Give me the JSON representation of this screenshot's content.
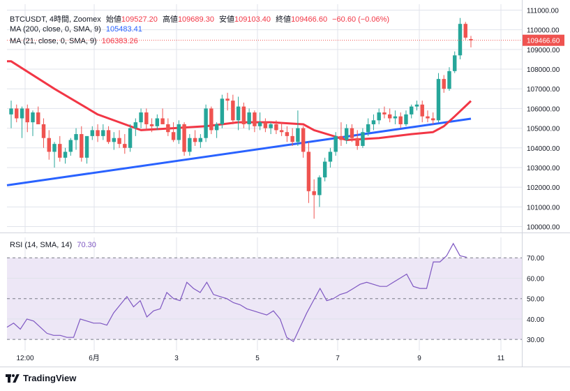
{
  "legend": {
    "symbol": "BTCUSDT, 4時間, Zoomex",
    "open_label": "始値",
    "open_value": "109527.20",
    "high_label": "高値",
    "high_value": "109689.30",
    "low_label": "安値",
    "low_value": "109103.40",
    "close_label": "終値",
    "close_value": "109466.60",
    "change": "−60.60 (−0.06%)",
    "ma200_label": "MA (200, close, 0, SMA, 9)",
    "ma200_value": "105483.41",
    "ma21_label": "MA (21, close, 0, SMA, 9)",
    "ma21_value": "106383.26",
    "rsi_label": "RSI (14, SMA, 14)",
    "rsi_value": "70.30"
  },
  "branding": {
    "logo_text": "TradingView"
  },
  "colors": {
    "up": "#26a69a",
    "down": "#ef5350",
    "ma200": "#2962ff",
    "ma21": "#f23645",
    "rsi_line": "#7e57c2",
    "rsi_band": "#ede7f6",
    "grid": "#e0e3eb",
    "text": "#131722"
  },
  "chart_data": [
    {
      "type": "candlestick",
      "title": "BTCUSDT, 4時間, Zoomex",
      "ylim": [
        99700,
        111300
      ],
      "price_ticks": [
        "111000.00",
        "110000.00",
        "109000.00",
        "108000.00",
        "107000.00",
        "106000.00",
        "105000.00",
        "104000.00",
        "103000.00",
        "102000.00",
        "101000.00",
        "100000.00"
      ],
      "last_price": "109466.60",
      "x_ticks": [
        "12:00",
        "6月",
        "3",
        "5",
        "7",
        "9",
        "11"
      ],
      "candles": [
        {
          "o": 105700,
          "h": 106400,
          "l": 105000,
          "c": 106000
        },
        {
          "o": 106000,
          "h": 106200,
          "l": 105300,
          "c": 105500
        },
        {
          "o": 105500,
          "h": 106100,
          "l": 104500,
          "c": 106000
        },
        {
          "o": 106000,
          "h": 106200,
          "l": 104800,
          "c": 105300
        },
        {
          "o": 105300,
          "h": 105900,
          "l": 104600,
          "c": 105800
        },
        {
          "o": 105800,
          "h": 106100,
          "l": 105200,
          "c": 105200
        },
        {
          "o": 105200,
          "h": 105500,
          "l": 104000,
          "c": 104500
        },
        {
          "o": 104500,
          "h": 104900,
          "l": 103400,
          "c": 103800
        },
        {
          "o": 103800,
          "h": 104300,
          "l": 103000,
          "c": 104200
        },
        {
          "o": 104200,
          "h": 104600,
          "l": 103300,
          "c": 103500
        },
        {
          "o": 103500,
          "h": 104000,
          "l": 103200,
          "c": 103800
        },
        {
          "o": 103800,
          "h": 104500,
          "l": 103600,
          "c": 104400
        },
        {
          "o": 104400,
          "h": 105000,
          "l": 103900,
          "c": 104700
        },
        {
          "o": 104700,
          "h": 105100,
          "l": 103300,
          "c": 103500
        },
        {
          "o": 103500,
          "h": 104500,
          "l": 103200,
          "c": 104600
        },
        {
          "o": 104600,
          "h": 105100,
          "l": 104400,
          "c": 104900
        },
        {
          "o": 104900,
          "h": 105200,
          "l": 104300,
          "c": 104600
        },
        {
          "o": 104600,
          "h": 105200,
          "l": 104400,
          "c": 104900
        },
        {
          "o": 104900,
          "h": 105100,
          "l": 104200,
          "c": 104300
        },
        {
          "o": 104300,
          "h": 104800,
          "l": 103900,
          "c": 104500
        },
        {
          "o": 104500,
          "h": 104900,
          "l": 104000,
          "c": 104200
        },
        {
          "o": 104200,
          "h": 104700,
          "l": 103700,
          "c": 104000
        },
        {
          "o": 104000,
          "h": 105200,
          "l": 103800,
          "c": 105000
        },
        {
          "o": 105000,
          "h": 105500,
          "l": 104600,
          "c": 105300
        },
        {
          "o": 105300,
          "h": 106000,
          "l": 105000,
          "c": 105800
        },
        {
          "o": 105800,
          "h": 106000,
          "l": 104900,
          "c": 105200
        },
        {
          "o": 105200,
          "h": 105500,
          "l": 104800,
          "c": 105100
        },
        {
          "o": 105100,
          "h": 105700,
          "l": 104900,
          "c": 105500
        },
        {
          "o": 105500,
          "h": 106000,
          "l": 105300,
          "c": 105200
        },
        {
          "o": 105200,
          "h": 105500,
          "l": 104600,
          "c": 104800
        },
        {
          "o": 104800,
          "h": 105300,
          "l": 104300,
          "c": 104400
        },
        {
          "o": 104400,
          "h": 105400,
          "l": 104200,
          "c": 105200
        },
        {
          "o": 105200,
          "h": 105300,
          "l": 103600,
          "c": 103800
        },
        {
          "o": 103800,
          "h": 104700,
          "l": 103600,
          "c": 104500
        },
        {
          "o": 104500,
          "h": 104900,
          "l": 104100,
          "c": 104300
        },
        {
          "o": 104300,
          "h": 104700,
          "l": 104000,
          "c": 104500
        },
        {
          "o": 104500,
          "h": 106200,
          "l": 104300,
          "c": 106000
        },
        {
          "o": 106000,
          "h": 106100,
          "l": 104700,
          "c": 104900
        },
        {
          "o": 104900,
          "h": 105300,
          "l": 104500,
          "c": 105200
        },
        {
          "o": 105200,
          "h": 106700,
          "l": 105000,
          "c": 106500
        },
        {
          "o": 106500,
          "h": 106800,
          "l": 105900,
          "c": 106400
        },
        {
          "o": 106400,
          "h": 106700,
          "l": 105200,
          "c": 105400
        },
        {
          "o": 105400,
          "h": 106600,
          "l": 104900,
          "c": 106100
        },
        {
          "o": 106100,
          "h": 106300,
          "l": 105000,
          "c": 105200
        },
        {
          "o": 105200,
          "h": 106000,
          "l": 104900,
          "c": 105800
        },
        {
          "o": 105800,
          "h": 105900,
          "l": 104800,
          "c": 105100
        },
        {
          "o": 105100,
          "h": 105800,
          "l": 104900,
          "c": 105300
        },
        {
          "o": 105300,
          "h": 105500,
          "l": 104800,
          "c": 105000
        },
        {
          "o": 105000,
          "h": 105300,
          "l": 104700,
          "c": 105200
        },
        {
          "o": 105200,
          "h": 105400,
          "l": 104700,
          "c": 104900
        },
        {
          "o": 104900,
          "h": 105300,
          "l": 104600,
          "c": 104800
        },
        {
          "o": 104800,
          "h": 105100,
          "l": 104300,
          "c": 104600
        },
        {
          "o": 104600,
          "h": 105000,
          "l": 104100,
          "c": 104300
        },
        {
          "o": 104300,
          "h": 105900,
          "l": 104100,
          "c": 105000
        },
        {
          "o": 105000,
          "h": 105100,
          "l": 103500,
          "c": 103800
        },
        {
          "o": 103800,
          "h": 104300,
          "l": 101200,
          "c": 101800
        },
        {
          "o": 101800,
          "h": 102400,
          "l": 100400,
          "c": 101600
        },
        {
          "o": 101600,
          "h": 102600,
          "l": 101000,
          "c": 102500
        },
        {
          "o": 102500,
          "h": 103500,
          "l": 102300,
          "c": 103300
        },
        {
          "o": 103300,
          "h": 104000,
          "l": 103000,
          "c": 103800
        },
        {
          "o": 103800,
          "h": 104800,
          "l": 103600,
          "c": 104600
        },
        {
          "o": 104600,
          "h": 105300,
          "l": 104100,
          "c": 104400
        },
        {
          "o": 104400,
          "h": 105200,
          "l": 104200,
          "c": 105000
        },
        {
          "o": 105000,
          "h": 105200,
          "l": 104300,
          "c": 104500
        },
        {
          "o": 104500,
          "h": 104900,
          "l": 103900,
          "c": 104100
        },
        {
          "o": 104100,
          "h": 105000,
          "l": 104000,
          "c": 104800
        },
        {
          "o": 104800,
          "h": 105500,
          "l": 104600,
          "c": 105200
        },
        {
          "o": 105200,
          "h": 105700,
          "l": 104900,
          "c": 105400
        },
        {
          "o": 105400,
          "h": 106000,
          "l": 105200,
          "c": 105800
        },
        {
          "o": 105800,
          "h": 106100,
          "l": 105500,
          "c": 105700
        },
        {
          "o": 105700,
          "h": 106000,
          "l": 105300,
          "c": 105500
        },
        {
          "o": 105500,
          "h": 105900,
          "l": 105200,
          "c": 105600
        },
        {
          "o": 105600,
          "h": 105800,
          "l": 105000,
          "c": 105200
        },
        {
          "o": 105200,
          "h": 105900,
          "l": 105100,
          "c": 105700
        },
        {
          "o": 105700,
          "h": 106200,
          "l": 105500,
          "c": 106100
        },
        {
          "o": 106100,
          "h": 106400,
          "l": 105900,
          "c": 106200
        },
        {
          "o": 106200,
          "h": 106400,
          "l": 105300,
          "c": 105600
        },
        {
          "o": 105600,
          "h": 105900,
          "l": 105300,
          "c": 105500
        },
        {
          "o": 105500,
          "h": 105800,
          "l": 105200,
          "c": 105400
        },
        {
          "o": 105400,
          "h": 107800,
          "l": 105300,
          "c": 107500
        },
        {
          "o": 107500,
          "h": 107700,
          "l": 106800,
          "c": 107000
        },
        {
          "o": 107000,
          "h": 108100,
          "l": 106900,
          "c": 107900
        },
        {
          "o": 107900,
          "h": 108900,
          "l": 107800,
          "c": 108700
        },
        {
          "o": 108700,
          "h": 110600,
          "l": 108500,
          "c": 110300
        },
        {
          "o": 110300,
          "h": 110400,
          "l": 109500,
          "c": 109600
        },
        {
          "o": 109527.2,
          "h": 109689.3,
          "l": 109103.4,
          "c": 109466.6
        }
      ],
      "series": [
        {
          "name": "MA (200, close, 0, SMA, 9)",
          "x": [
            0,
            85
          ],
          "values": [
            102100,
            105483.41
          ]
        },
        {
          "name": "MA (21, close, 0, SMA, 9)",
          "x": [
            0,
            8,
            16,
            24,
            30,
            36,
            42,
            48,
            54,
            56,
            62,
            68,
            74,
            78,
            80,
            82,
            85
          ],
          "values": [
            108400,
            107000,
            105700,
            104900,
            105000,
            105100,
            105300,
            105300,
            105200,
            104900,
            104400,
            104500,
            104700,
            104800,
            105100,
            105600,
            106383.26
          ]
        }
      ]
    },
    {
      "type": "line",
      "title": "RSI (14, SMA, 14)",
      "ylim": [
        28,
        80
      ],
      "y_ticks": [
        "70.00",
        "60.00",
        "50.00",
        "40.00",
        "30.00"
      ],
      "band": [
        30,
        70
      ],
      "series": [
        {
          "name": "RSI (14, SMA, 14)",
          "values": [
            36,
            38,
            35,
            40,
            39,
            36,
            33,
            32,
            32,
            31,
            31,
            40,
            39,
            38,
            38,
            37,
            43,
            47,
            51,
            46,
            49,
            41,
            44,
            45,
            53,
            50,
            49,
            58,
            55,
            53,
            58,
            52,
            51,
            50,
            48,
            47,
            45,
            44,
            43,
            42,
            44,
            40,
            31,
            29,
            36,
            43,
            49,
            55,
            49,
            50,
            52,
            53,
            55,
            57,
            58,
            57,
            56,
            56,
            58,
            60,
            62,
            56,
            55,
            55,
            68,
            68,
            71,
            77,
            71,
            70.3
          ]
        }
      ]
    }
  ]
}
